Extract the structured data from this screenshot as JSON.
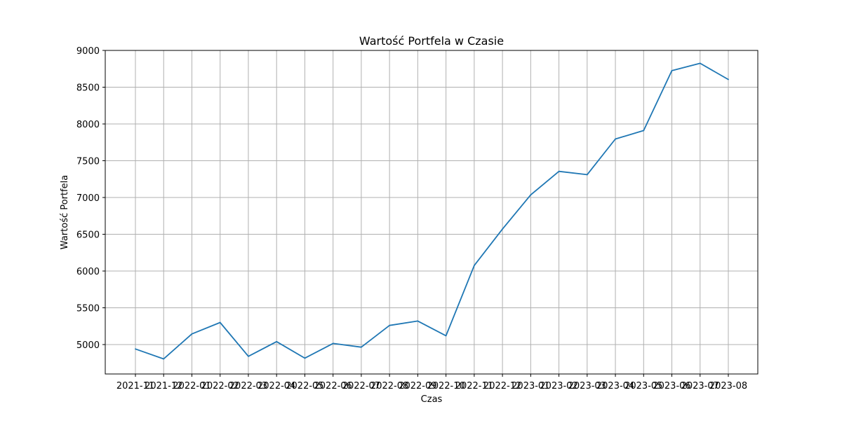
{
  "chart_data": {
    "type": "line",
    "title": "Wartość Portfela w Czasie",
    "xlabel": "Czas",
    "ylabel": "Wartość Portfela",
    "x": [
      "2021-11",
      "2021-12",
      "2022-01",
      "2022-02",
      "2022-03",
      "2022-04",
      "2022-05",
      "2022-06",
      "2022-07",
      "2022-08",
      "2022-09",
      "2022-10",
      "2022-11",
      "2022-12",
      "2023-01",
      "2023-02",
      "2023-03",
      "2023-04",
      "2023-05",
      "2023-06",
      "2023-07",
      "2023-08"
    ],
    "series": [
      {
        "values": [
          4940,
          4805,
          5145,
          5300,
          4840,
          5040,
          4815,
          5015,
          4965,
          5260,
          5320,
          5120,
          6075,
          6570,
          7035,
          7355,
          7310,
          7795,
          7910,
          8725,
          8825,
          8605
        ]
      }
    ],
    "ylim": [
      4600,
      9000
    ],
    "yticks": [
      5000,
      5500,
      6000,
      6500,
      7000,
      7500,
      8000,
      8500,
      9000
    ],
    "grid": true,
    "line_color": "#1f77b4"
  }
}
